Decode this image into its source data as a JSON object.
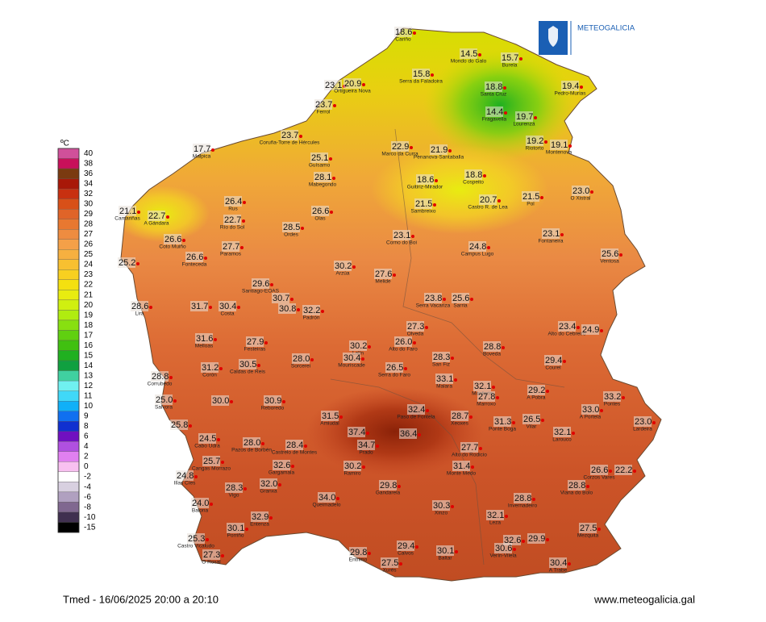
{
  "logo": "METEOGALICIA",
  "legend": {
    "unit": "ºC",
    "levels": [
      {
        "value": 40,
        "color": "#d0509a"
      },
      {
        "value": 38,
        "color": "#c8105a"
      },
      {
        "value": 36,
        "color": "#7a3a10"
      },
      {
        "value": 34,
        "color": "#a81808"
      },
      {
        "value": 32,
        "color": "#c83010"
      },
      {
        "value": 30,
        "color": "#d85018"
      },
      {
        "value": 29,
        "color": "#e06428"
      },
      {
        "value": 28,
        "color": "#e87830"
      },
      {
        "value": 27,
        "color": "#ee8c40"
      },
      {
        "value": 26,
        "color": "#f4a048"
      },
      {
        "value": 25,
        "color": "#f6b040"
      },
      {
        "value": 24,
        "color": "#f8c030"
      },
      {
        "value": 23,
        "color": "#f8d020"
      },
      {
        "value": 22,
        "color": "#f4e010"
      },
      {
        "value": 21,
        "color": "#e8ec10"
      },
      {
        "value": 20,
        "color": "#d0f010"
      },
      {
        "value": 19,
        "color": "#b0ec10"
      },
      {
        "value": 18,
        "color": "#88e010"
      },
      {
        "value": 17,
        "color": "#60d010"
      },
      {
        "value": 16,
        "color": "#40c010"
      },
      {
        "value": 15,
        "color": "#20b020"
      },
      {
        "value": 14,
        "color": "#10a040"
      },
      {
        "value": 13,
        "color": "#40d0a0"
      },
      {
        "value": 12,
        "color": "#70f0f0"
      },
      {
        "value": 11,
        "color": "#40d8f8"
      },
      {
        "value": 10,
        "color": "#10b0f8"
      },
      {
        "value": 9,
        "color": "#1070f0"
      },
      {
        "value": 8,
        "color": "#1030d0"
      },
      {
        "value": 6,
        "color": "#7010c0"
      },
      {
        "value": 4,
        "color": "#b050e0"
      },
      {
        "value": 2,
        "color": "#e080f0"
      },
      {
        "value": 0,
        "color": "#f8c0f0"
      },
      {
        "value": -2,
        "color": "#ffffff"
      },
      {
        "value": -4,
        "color": "#d8d0e0"
      },
      {
        "value": -6,
        "color": "#b0a0c0"
      },
      {
        "value": -8,
        "color": "#806890"
      },
      {
        "value": -10,
        "color": "#403050"
      },
      {
        "value": -15,
        "color": "#000000"
      }
    ]
  },
  "stations": [
    {
      "value": "18.6",
      "name": "Cariño"
    },
    {
      "value": "14.5",
      "name": "Mondo do Galo"
    },
    {
      "value": "15.7",
      "name": "Burela"
    },
    {
      "value": "15.8",
      "name": "Serra da Faladoira"
    },
    {
      "value": "23.1"
    },
    {
      "value": "20.9",
      "name": "Ortigueira Nova"
    },
    {
      "value": "18.8",
      "name": "Santa Cruz"
    },
    {
      "value": "19.4",
      "name": "Pedro-Murias"
    },
    {
      "value": "23.7",
      "name": "Ferrol"
    },
    {
      "value": "14.4",
      "name": "Fragavella"
    },
    {
      "value": "19.7",
      "name": "Lourenzá"
    },
    {
      "value": "23.7",
      "name": "Coruña-Torre de Hércules"
    },
    {
      "value": "22.9",
      "name": "Marco da Curra"
    },
    {
      "value": "21.9",
      "name": "Penanova-Santaballa"
    },
    {
      "value": "19.2",
      "name": "Riotorto"
    },
    {
      "value": "19.1",
      "name": "Montenova"
    },
    {
      "value": "17.7",
      "name": "Malpica"
    },
    {
      "value": "25.1",
      "name": "Guísamo"
    },
    {
      "value": "28.1",
      "name": "Mabegondo"
    },
    {
      "value": "18.6",
      "name": "Guitiriz-Mirador"
    },
    {
      "value": "18.8",
      "name": "Cospeito"
    },
    {
      "value": "23.0",
      "name": "O Xistral"
    },
    {
      "value": "26.4",
      "name": "Rus"
    },
    {
      "value": "20.7",
      "name": "Castro R. de Lea"
    },
    {
      "value": "21.5",
      "name": "Pol"
    },
    {
      "value": "21.5",
      "name": "Sambreixo"
    },
    {
      "value": "21.1",
      "name": "Camariñas"
    },
    {
      "value": "22.7",
      "name": "A Gándara"
    },
    {
      "value": "22.7",
      "name": "Río do Sol"
    },
    {
      "value": "26.6",
      "name": "Olas"
    },
    {
      "value": "28.5",
      "name": "Ordes"
    },
    {
      "value": "26.6",
      "name": "Coto Muiño"
    },
    {
      "value": "23.1",
      "name": "Corno do Boi"
    },
    {
      "value": "23.1",
      "name": "Fontaneira"
    },
    {
      "value": "27.7",
      "name": "Paramos"
    },
    {
      "value": "24.8",
      "name": "Campus Lugo"
    },
    {
      "value": "26.6",
      "name": "Fonteceda"
    },
    {
      "value": "25.2"
    },
    {
      "value": "25.6",
      "name": "Ventosa"
    },
    {
      "value": "30.2",
      "name": "Arzúa"
    },
    {
      "value": "27.6",
      "name": "Melide"
    },
    {
      "value": "29.6",
      "name": "Santiago-EOAS"
    },
    {
      "value": "30.7"
    },
    {
      "value": "23.8",
      "name": "Serra Vacariza"
    },
    {
      "value": "25.6",
      "name": "Sarria"
    },
    {
      "value": "28.6",
      "name": "Lira"
    },
    {
      "value": "31.7"
    },
    {
      "value": "30.4",
      "name": "Costa"
    },
    {
      "value": "30.8"
    },
    {
      "value": "32.2",
      "name": "Padrón"
    },
    {
      "value": "27.3",
      "name": "Olveda"
    },
    {
      "value": "23.4",
      "name": "Alto do Cebreiro"
    },
    {
      "value": "24.9"
    },
    {
      "value": "31.6",
      "name": "Melloas"
    },
    {
      "value": "27.9",
      "name": "Festeiras"
    },
    {
      "value": "30.2",
      "name": "Lalín"
    },
    {
      "value": "26.0",
      "name": "Alto do Faro"
    },
    {
      "value": "28.8",
      "name": "Boveda"
    },
    {
      "value": "30.4",
      "name": "Mouriscade"
    },
    {
      "value": "28.0",
      "name": "Sorcerei"
    },
    {
      "value": "28.3",
      "name": "San Fiz"
    },
    {
      "value": "29.4",
      "name": "Courel"
    },
    {
      "value": "30.5",
      "name": "Caldas de Reis"
    },
    {
      "value": "31.2",
      "name": "Corón"
    },
    {
      "value": "26.5",
      "name": "Serra do Faro"
    },
    {
      "value": "28.8",
      "name": "Corrubedo"
    },
    {
      "value": "33.1",
      "name": "Malara"
    },
    {
      "value": "32.1",
      "name": "Monforte"
    },
    {
      "value": "29.2",
      "name": "A Pobra"
    },
    {
      "value": "33.2",
      "name": "Pontes"
    },
    {
      "value": "25.0",
      "name": "Salvora"
    },
    {
      "value": "30.0"
    },
    {
      "value": "30.9",
      "name": "Reboredo"
    },
    {
      "value": "27.8",
      "name": "Marroxo"
    },
    {
      "value": "33.0",
      "name": "A Portela"
    },
    {
      "value": "31.5",
      "name": "Amiudal"
    },
    {
      "value": "32.4",
      "name": "Paso de Fontela"
    },
    {
      "value": "28.7",
      "name": "Xeoxes"
    },
    {
      "value": "31.3",
      "name": "Ponte Boga"
    },
    {
      "value": "26.5",
      "name": "Vilar"
    },
    {
      "value": "23.0",
      "name": "Lardeira"
    },
    {
      "value": "25.8"
    },
    {
      "value": "32.1",
      "name": "Larouco"
    },
    {
      "value": "37.4"
    },
    {
      "value": "36.4"
    },
    {
      "value": "34.7",
      "name": "Prado"
    },
    {
      "value": "24.5",
      "name": "Cabo Udra"
    },
    {
      "value": "28.0",
      "name": "Pazos de Borbén"
    },
    {
      "value": "28.4",
      "name": "Castrelo de Montes"
    },
    {
      "value": "27.7",
      "name": "Alto do Rodicio"
    },
    {
      "value": "25.7",
      "name": "Cangas Morrazo"
    },
    {
      "value": "32.6",
      "name": "Gargamala"
    },
    {
      "value": "30.2",
      "name": "Ramiro"
    },
    {
      "value": "31.4",
      "name": "Monte Medo"
    },
    {
      "value": "26.6",
      "name": "Corzos Vares"
    },
    {
      "value": "22.2"
    },
    {
      "value": "24.8",
      "name": "Illas Cíes"
    },
    {
      "value": "28.3",
      "name": "Vigo"
    },
    {
      "value": "32.0",
      "name": "Granxa"
    },
    {
      "value": "29.8",
      "name": "Gandarela"
    },
    {
      "value": "28.8",
      "name": "Viana do Bolo"
    },
    {
      "value": "34.0",
      "name": "Queimadelo"
    },
    {
      "value": "28.8",
      "name": "Invernadeiro"
    },
    {
      "value": "24.0",
      "name": "Baiona"
    },
    {
      "value": "30.3",
      "name": "Xinzo"
    },
    {
      "value": "32.9",
      "name": "Entenza"
    },
    {
      "value": "32.1",
      "name": "Leza"
    },
    {
      "value": "30.1",
      "name": "Porriño"
    },
    {
      "value": "27.5",
      "name": "Mezquita"
    },
    {
      "value": "32.6"
    },
    {
      "value": "29.9"
    },
    {
      "value": "25.3",
      "name": "Castro Vicaludo"
    },
    {
      "value": "30.6",
      "name": "Verín-Vilela"
    },
    {
      "value": "29.4",
      "name": "Calvos"
    },
    {
      "value": "29.8",
      "name": "Entrimo"
    },
    {
      "value": "30.1",
      "name": "Baltar"
    },
    {
      "value": "27.3",
      "name": "O Rosal"
    },
    {
      "value": "27.5",
      "name": "Xurés"
    },
    {
      "value": "30.4",
      "name": "A Trabe"
    }
  ],
  "footer": {
    "caption": "Tmed - 16/06/2025 20:00 a 20:10",
    "site": "www.meteogalicia.gal"
  }
}
